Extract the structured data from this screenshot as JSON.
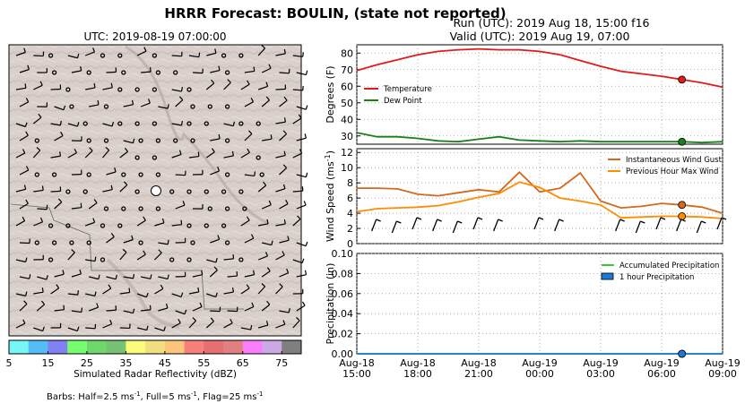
{
  "figure": {
    "title": "HRRR Forecast: BOULIN, (state not reported)",
    "map_title": "UTC: 2019-08-19 07:00:00",
    "run_line": "Run (UTC): 2019 Aug 18, 15:00 f16",
    "valid_line": "Valid (UTC): 2019 Aug 19, 07:00",
    "barbs_note_prefix": "Barbs: Half=2.5 ms",
    "barbs_note_mid1": ", Full=5 ms",
    "barbs_note_mid2": ", Flag=25 ms",
    "barbs_sup": "-1"
  },
  "colorbar": {
    "label": "Simulated Radar Reflectivity (dBZ)",
    "ticks": [
      "5",
      "15",
      "25",
      "35",
      "45",
      "55",
      "65",
      "75"
    ],
    "colors": [
      "#76f6f5",
      "#55bdf6",
      "#8081f3",
      "#77fe70",
      "#6fd86d",
      "#78c273",
      "#fbfc7a",
      "#f2df82",
      "#fbc57c",
      "#f87f7c",
      "#e57071",
      "#e08080",
      "#fa7efa",
      "#cba9e4",
      "#7f7f7f"
    ]
  },
  "x_ticks": [
    "Aug-18\n15:00",
    "Aug-18\n18:00",
    "Aug-18\n21:00",
    "Aug-19\n00:00",
    "Aug-19\n03:00",
    "Aug-19\n06:00",
    "Aug-19\n09:00"
  ],
  "chart_data": [
    {
      "type": "line",
      "ylabel": "Degrees (F)",
      "ylim": [
        25,
        85
      ],
      "yticks": [
        "30",
        "40",
        "50",
        "60",
        "70",
        "80"
      ],
      "x": [
        "Aug-18 15:00",
        "Aug-18 16:00",
        "Aug-18 17:00",
        "Aug-18 18:00",
        "Aug-18 19:00",
        "Aug-18 20:00",
        "Aug-18 21:00",
        "Aug-18 22:00",
        "Aug-18 23:00",
        "Aug-19 00:00",
        "Aug-19 01:00",
        "Aug-19 02:00",
        "Aug-19 03:00",
        "Aug-19 04:00",
        "Aug-19 05:00",
        "Aug-19 06:00",
        "Aug-19 07:00",
        "Aug-19 08:00",
        "Aug-19 09:00"
      ],
      "series": [
        {
          "name": "Temperature",
          "color": "#e31a1c",
          "values": [
            69.5,
            73,
            76,
            79,
            81,
            82,
            82.5,
            82,
            82,
            81,
            79,
            75.5,
            72,
            69,
            67.5,
            66,
            64,
            62,
            59.5
          ]
        },
        {
          "name": "Dew Point",
          "color": "#1a7f1a",
          "values": [
            32,
            29.5,
            29.5,
            28.5,
            27,
            26.5,
            28,
            29.5,
            27.5,
            27,
            26.5,
            27,
            26.5,
            26.5,
            26.5,
            26.5,
            26.5,
            26,
            26.5
          ]
        }
      ],
      "marker_index": 16,
      "legend": "left"
    },
    {
      "type": "line",
      "ylabel": "Wind Speed (ms",
      "ylabel_sup": "-1",
      "ylabel_close": ")",
      "ylim": [
        0,
        12.5
      ],
      "yticks": [
        "0",
        "2",
        "4",
        "6",
        "8",
        "10",
        "12"
      ],
      "x": [
        "Aug-18 15:00",
        "Aug-18 16:00",
        "Aug-18 17:00",
        "Aug-18 18:00",
        "Aug-18 19:00",
        "Aug-18 20:00",
        "Aug-18 21:00",
        "Aug-18 22:00",
        "Aug-18 23:00",
        "Aug-19 00:00",
        "Aug-19 01:00",
        "Aug-19 02:00",
        "Aug-19 03:00",
        "Aug-19 04:00",
        "Aug-19 05:00",
        "Aug-19 06:00",
        "Aug-19 07:00",
        "Aug-19 08:00",
        "Aug-19 09:00"
      ],
      "series": [
        {
          "name": "Instantaneous Wind Gust",
          "color": "#d2691e",
          "values": [
            7.3,
            7.3,
            7.2,
            6.5,
            6.3,
            6.7,
            7.1,
            6.8,
            9.4,
            6.8,
            7.3,
            9.3,
            5.6,
            4.7,
            4.9,
            5.3,
            5.1,
            4.8,
            4.0
          ]
        },
        {
          "name": "Previous Hour Max Wind",
          "color": "#ff8c00",
          "values": [
            4.2,
            4.6,
            4.7,
            4.8,
            5.0,
            5.5,
            6.1,
            6.6,
            8.1,
            7.4,
            6.0,
            5.6,
            5.1,
            3.4,
            3.5,
            3.6,
            3.6,
            3.5,
            3.3
          ]
        }
      ],
      "marker_index": 16,
      "legend": "top-right"
    },
    {
      "type": "bar",
      "ylabel": "Precipitation (in)",
      "ylim": [
        0,
        0.1
      ],
      "yticks": [
        "0.00",
        "0.02",
        "0.04",
        "0.06",
        "0.08",
        "0.10"
      ],
      "x": [
        "Aug-18 15:00",
        "Aug-18 16:00",
        "Aug-18 17:00",
        "Aug-18 18:00",
        "Aug-18 19:00",
        "Aug-18 20:00",
        "Aug-18 21:00",
        "Aug-18 22:00",
        "Aug-18 23:00",
        "Aug-19 00:00",
        "Aug-19 01:00",
        "Aug-19 02:00",
        "Aug-19 03:00",
        "Aug-19 04:00",
        "Aug-19 05:00",
        "Aug-19 06:00",
        "Aug-19 07:00",
        "Aug-19 08:00",
        "Aug-19 09:00"
      ],
      "series": [
        {
          "name": "Accumulated Precipitation",
          "color": "#32cd32",
          "values": [
            0,
            0,
            0,
            0,
            0,
            0,
            0,
            0,
            0,
            0,
            0,
            0,
            0,
            0,
            0,
            0,
            0,
            0,
            0
          ]
        },
        {
          "name": "1 hour Precipitation",
          "color": "#1f78d4",
          "values": [
            0,
            0,
            0,
            0,
            0,
            0,
            0,
            0,
            0,
            0,
            0,
            0,
            0,
            0,
            0,
            0,
            0,
            0,
            0
          ]
        }
      ],
      "marker_index": 16,
      "legend": "top-right"
    }
  ]
}
